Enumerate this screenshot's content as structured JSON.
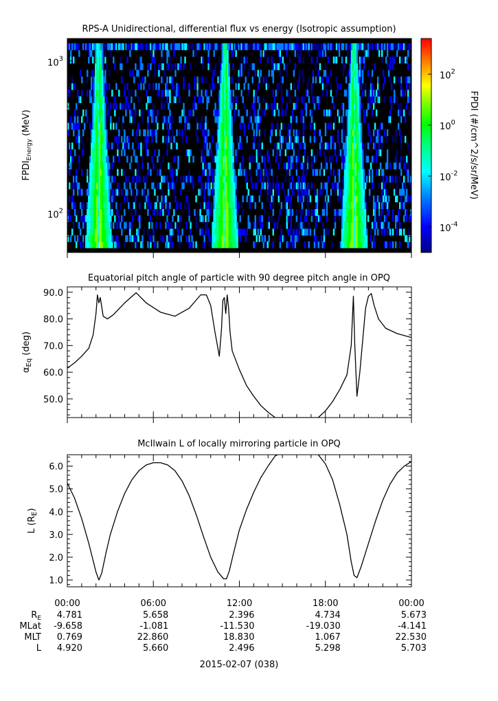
{
  "chart_data": [
    {
      "type": "heatmap",
      "title": "RPS-A Unidirectional, differential flux vs energy (Isotropic assumption)",
      "ylabel": "FPDI",
      "ylabel_sub": "Energy",
      "ylabel_unit": " (MeV)",
      "yscale": "log",
      "ylim": [
        55,
        1400
      ],
      "xlim_hours": [
        0,
        24
      ],
      "yticks": [
        {
          "value": 100,
          "base": "10",
          "exp": "2"
        },
        {
          "value": 1000,
          "base": "10",
          "exp": "3"
        }
      ],
      "energy_bins_mev": [
        62,
        68,
        75,
        83,
        92,
        101,
        112,
        124,
        137,
        151,
        167,
        185,
        204,
        226,
        249,
        276,
        305,
        337,
        372,
        412,
        455,
        503,
        556,
        614,
        679,
        750,
        829,
        916,
        1013,
        1119,
        1240
      ],
      "flux_peaks_hours": [
        2.2,
        11.0,
        20.0
      ],
      "colorbar": {
        "label": "FPDI (#/cm^2/s/sr/MeV)",
        "scale": "log",
        "range_log10": [
          -5,
          3.4
        ],
        "ticks": [
          {
            "value": -4,
            "base": "10",
            "exp": "-4"
          },
          {
            "value": -2,
            "base": "10",
            "exp": "-2"
          },
          {
            "value": 0,
            "base": "10",
            "exp": "0"
          },
          {
            "value": 2,
            "base": "10",
            "exp": "2"
          }
        ],
        "colors": [
          "#000080",
          "#0000ff",
          "#0080ff",
          "#00ffff",
          "#00ff80",
          "#00ff00",
          "#80ff00",
          "#ffff00",
          "#ff8000",
          "#ff0000"
        ]
      }
    },
    {
      "type": "line",
      "title": "Equatorial pitch angle of particle with 90 degree pitch angle in OPQ",
      "ylabel": "α",
      "ylabel_sub": "Eq",
      "ylabel_unit": " (deg)",
      "ylim": [
        43,
        92
      ],
      "yticks": [
        50,
        60,
        70,
        80,
        90
      ],
      "tick_format": "decimal1",
      "series": [
        {
          "x": [
            0,
            0.5,
            1.0,
            1.5,
            1.8,
            2.0,
            2.1,
            2.2,
            2.3,
            2.5,
            2.8,
            3.2,
            4.0,
            4.8,
            5.5,
            6.5,
            7.5,
            8.5,
            9.3,
            9.7,
            10.0,
            10.3,
            10.6,
            10.75,
            10.85,
            10.95,
            11.05,
            11.15,
            11.25,
            11.35,
            11.5,
            12.0,
            12.5,
            13.0,
            13.5,
            14.0,
            14.5,
            17.5,
            18.0,
            18.5,
            19.0,
            19.5,
            19.8,
            19.95,
            20.05,
            20.2,
            20.4,
            20.6,
            20.8,
            21.0,
            21.2,
            21.4,
            21.7,
            22.2,
            23.0,
            24.0
          ],
          "y": [
            61.5,
            63.5,
            66,
            69,
            74,
            82,
            89,
            86,
            88,
            81,
            80,
            81.5,
            86,
            89.8,
            86,
            82.5,
            81,
            84,
            89,
            89,
            85,
            75,
            66,
            76,
            87,
            88,
            82,
            89,
            84,
            75,
            68,
            61,
            55,
            51,
            47.5,
            45,
            43,
            43,
            45.5,
            49,
            53.5,
            59,
            70,
            88.5,
            70,
            51,
            60,
            72,
            84,
            88.5,
            89.5,
            85,
            80,
            76.5,
            74.5,
            73
          ]
        }
      ]
    },
    {
      "type": "line",
      "title": "McIlwain L of locally mirroring particle in OPQ",
      "ylabel": "L (R",
      "ylabel_sub": "E",
      "ylabel_unit": ")",
      "ylim": [
        0.7,
        6.5
      ],
      "yticks": [
        1,
        2,
        3,
        4,
        5,
        6
      ],
      "tick_format": "decimal1",
      "series": [
        {
          "x": [
            0,
            0.5,
            1.0,
            1.5,
            2.0,
            2.2,
            2.4,
            2.7,
            3.0,
            3.5,
            4.0,
            4.5,
            5.0,
            5.5,
            6.0,
            6.5,
            7.0,
            7.5,
            8.0,
            8.5,
            9.0,
            9.5,
            10.0,
            10.5,
            10.9,
            11.1,
            11.3,
            11.6,
            12.0,
            12.5,
            13.0,
            13.5,
            14.0,
            14.5,
            15.0,
            15.5,
            16.0,
            16.5,
            17.0,
            17.5,
            18.0,
            18.5,
            19.0,
            19.5,
            19.8,
            20.0,
            20.2,
            20.5,
            21.0,
            21.5,
            22.0,
            22.5,
            23.0,
            23.5,
            24.0
          ],
          "y": [
            5.25,
            4.6,
            3.7,
            2.6,
            1.35,
            1.0,
            1.3,
            2.2,
            3.0,
            4.0,
            4.8,
            5.4,
            5.8,
            6.05,
            6.15,
            6.15,
            6.05,
            5.8,
            5.35,
            4.7,
            3.85,
            2.9,
            2.0,
            1.35,
            1.05,
            1.05,
            1.4,
            2.2,
            3.2,
            4.1,
            4.85,
            5.5,
            6.0,
            6.45,
            6.6,
            6.6,
            6.6,
            6.6,
            6.6,
            6.5,
            6.1,
            5.4,
            4.3,
            3.0,
            1.8,
            1.2,
            1.1,
            1.6,
            2.6,
            3.6,
            4.5,
            5.2,
            5.7,
            6.0,
            6.2
          ]
        }
      ]
    }
  ],
  "time_axis": {
    "tick_labels": [
      "00:00",
      "06:00",
      "12:00",
      "18:00",
      "00:00"
    ],
    "minor_per_major": 6,
    "date_label": "2015-02-07 (038)"
  },
  "ephemeris": {
    "rows": [
      {
        "label": "R",
        "label_sub": "E",
        "values": [
          "4.781",
          "5.658",
          "2.396",
          "4.734",
          "5.673"
        ]
      },
      {
        "label": "MLat",
        "label_sub": "",
        "values": [
          "-9.658",
          "-1.081",
          "-11.530",
          "-19.030",
          "-4.141"
        ]
      },
      {
        "label": "MLT",
        "label_sub": "",
        "values": [
          "0.769",
          "22.860",
          "18.830",
          "1.067",
          "22.530"
        ]
      },
      {
        "label": "L",
        "label_sub": "",
        "values": [
          "4.920",
          "5.660",
          "2.496",
          "5.298",
          "5.703"
        ]
      }
    ]
  }
}
